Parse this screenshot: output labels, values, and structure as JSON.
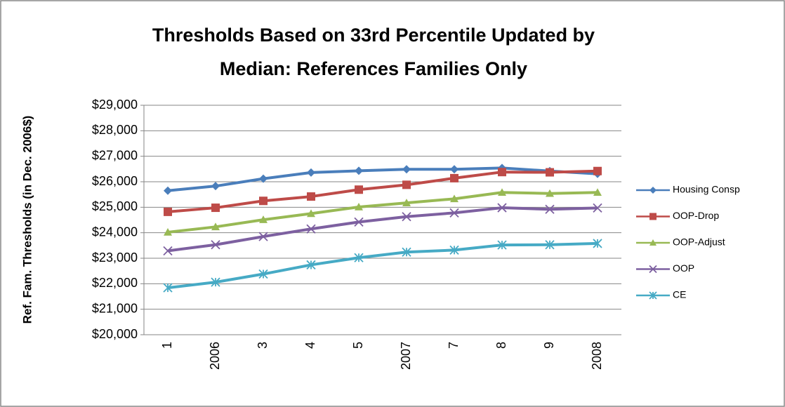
{
  "chart_data": {
    "type": "line",
    "title_lines": [
      "Thresholds Based on 33rd Percentile Updated by",
      "Median:  References Families Only"
    ],
    "y_label": "Ref. Fam. Thresholds (in Dec. 2006$)",
    "categories": [
      "1",
      "2006",
      "3",
      "4",
      "5",
      "2007",
      "7",
      "8",
      "9",
      "2008"
    ],
    "series": [
      {
        "name": "Housing Consp",
        "color": "#4a7ebb",
        "marker": "diamond",
        "values": [
          25650,
          25830,
          26120,
          26360,
          26430,
          26490,
          26490,
          26540,
          26420,
          26310
        ]
      },
      {
        "name": "OOP-Drop",
        "color": "#be4b48",
        "marker": "square",
        "values": [
          24820,
          24980,
          25250,
          25420,
          25690,
          25880,
          26140,
          26380,
          26370,
          26420
        ]
      },
      {
        "name": "OOP-Adjust",
        "color": "#98b954",
        "marker": "triangle",
        "values": [
          24020,
          24230,
          24510,
          24750,
          25010,
          25170,
          25330,
          25580,
          25540,
          25580
        ]
      },
      {
        "name": "OOP",
        "color": "#7d60a0",
        "marker": "x",
        "values": [
          23290,
          23530,
          23850,
          24150,
          24420,
          24630,
          24780,
          24980,
          24920,
          24970
        ]
      },
      {
        "name": "CE",
        "color": "#46aac5",
        "marker": "asterisk",
        "values": [
          21840,
          22060,
          22380,
          22740,
          23020,
          23240,
          23320,
          23520,
          23530,
          23580
        ]
      }
    ],
    "ylim": [
      20000,
      29000
    ],
    "yticks": [
      {
        "value": 20000,
        "label": "$20,000"
      },
      {
        "value": 21000,
        "label": "$21,000"
      },
      {
        "value": 22000,
        "label": "$22,000"
      },
      {
        "value": 23000,
        "label": "$23,000"
      },
      {
        "value": 24000,
        "label": "$24,000"
      },
      {
        "value": 25000,
        "label": "$25,000"
      },
      {
        "value": 26000,
        "label": "$26,000"
      },
      {
        "value": 27000,
        "label": "$27,000"
      },
      {
        "value": 28000,
        "label": "$28,000"
      },
      {
        "value": 29000,
        "label": "$29,000"
      }
    ],
    "grid": true,
    "legend": "right"
  }
}
